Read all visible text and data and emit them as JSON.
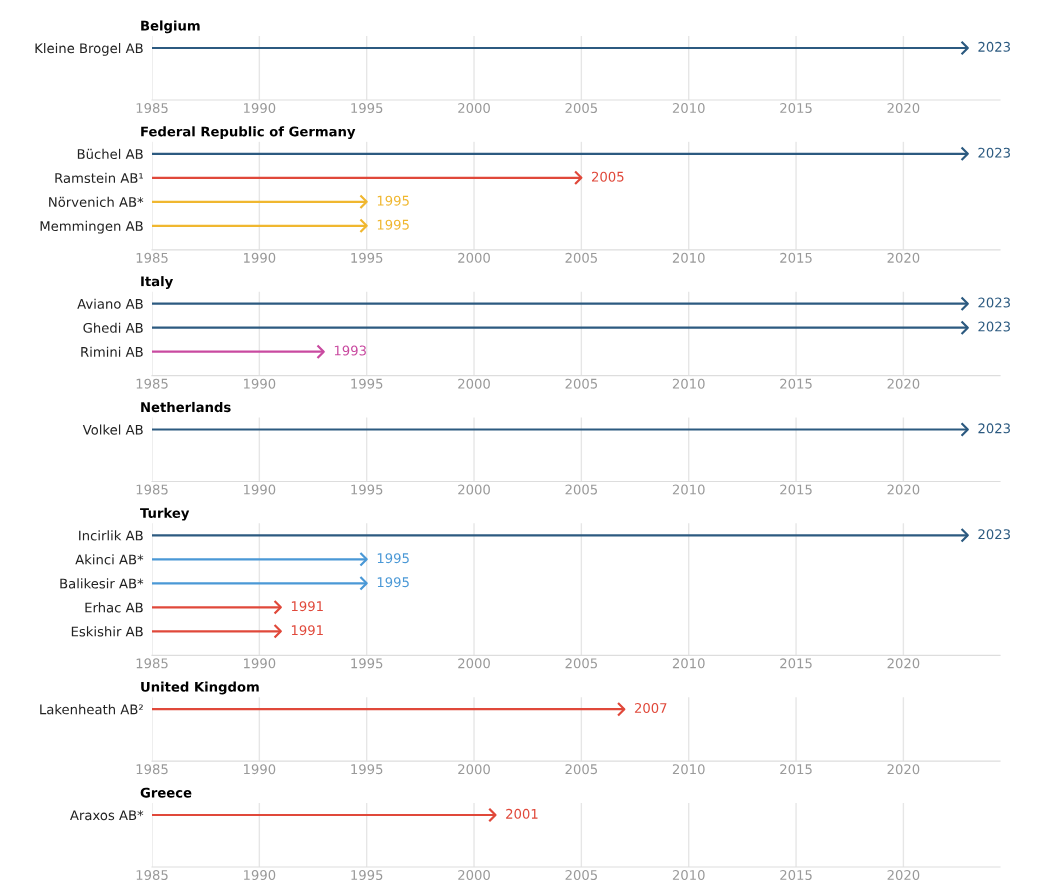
{
  "chart_data": [
    {
      "type": "bar",
      "orientation": "horizontal",
      "title": "Belgium",
      "categories": [
        "Kleine Brogel AB"
      ],
      "values": [
        2023
      ],
      "colors": [
        "#2c5a80"
      ],
      "value_labels": [
        "2023"
      ],
      "xlim": [
        1985,
        2024.5
      ],
      "xticks": [
        1985,
        1990,
        1995,
        2000,
        2005,
        2010,
        2015,
        2020
      ],
      "grid": "x"
    },
    {
      "type": "bar",
      "orientation": "horizontal",
      "title": "Federal Republic of Germany",
      "categories": [
        "Büchel AB",
        "Ramstein AB¹",
        "Nörvenich AB*",
        "Memmingen AB"
      ],
      "values": [
        2023,
        2005,
        1995,
        1995
      ],
      "colors": [
        "#2c5a80",
        "#e0483a",
        "#f0b72f",
        "#f0b72f"
      ],
      "value_labels": [
        "2023",
        "2005",
        "1995",
        "1995"
      ],
      "xlim": [
        1985,
        2024.5
      ],
      "xticks": [
        1985,
        1990,
        1995,
        2000,
        2005,
        2010,
        2015,
        2020
      ],
      "grid": "x"
    },
    {
      "type": "bar",
      "orientation": "horizontal",
      "title": "Italy",
      "categories": [
        "Aviano AB",
        "Ghedi AB",
        "Rimini AB"
      ],
      "values": [
        2023,
        2023,
        1993
      ],
      "colors": [
        "#2c5a80",
        "#2c5a80",
        "#c94aa0"
      ],
      "value_labels": [
        "2023",
        "2023",
        "1993"
      ],
      "xlim": [
        1985,
        2024.5
      ],
      "xticks": [
        1985,
        1990,
        1995,
        2000,
        2005,
        2010,
        2015,
        2020
      ],
      "grid": "x"
    },
    {
      "type": "bar",
      "orientation": "horizontal",
      "title": "Netherlands",
      "categories": [
        "Volkel AB"
      ],
      "values": [
        2023
      ],
      "colors": [
        "#2c5a80"
      ],
      "value_labels": [
        "2023"
      ],
      "xlim": [
        1985,
        2024.5
      ],
      "xticks": [
        1985,
        1990,
        1995,
        2000,
        2005,
        2010,
        2015,
        2020
      ],
      "grid": "x"
    },
    {
      "type": "bar",
      "orientation": "horizontal",
      "title": "Turkey",
      "categories": [
        "Incirlik AB",
        "Akinci AB*",
        "Balikesir AB*",
        "Erhac AB",
        "Eskishir AB"
      ],
      "values": [
        2023,
        1995,
        1995,
        1991,
        1991
      ],
      "colors": [
        "#2c5a80",
        "#4a98d6",
        "#4a98d6",
        "#e0483a",
        "#e0483a"
      ],
      "value_labels": [
        "2023",
        "1995",
        "1995",
        "1991",
        "1991"
      ],
      "xlim": [
        1985,
        2024.5
      ],
      "xticks": [
        1985,
        1990,
        1995,
        2000,
        2005,
        2010,
        2015,
        2020
      ],
      "grid": "x"
    },
    {
      "type": "bar",
      "orientation": "horizontal",
      "title": "United Kingdom",
      "categories": [
        "Lakenheath AB²"
      ],
      "values": [
        2007
      ],
      "colors": [
        "#e0483a"
      ],
      "value_labels": [
        "2007"
      ],
      "xlim": [
        1985,
        2024.5
      ],
      "xticks": [
        1985,
        1990,
        1995,
        2000,
        2005,
        2010,
        2015,
        2020
      ],
      "grid": "x"
    },
    {
      "type": "bar",
      "orientation": "horizontal",
      "title": "Greece",
      "categories": [
        "Araxos AB*"
      ],
      "values": [
        2001
      ],
      "colors": [
        "#e0483a"
      ],
      "value_labels": [
        "2001"
      ],
      "xlim": [
        1985,
        2024.5
      ],
      "xticks": [
        1985,
        1990,
        1995,
        2000,
        2005,
        2010,
        2015,
        2020
      ],
      "grid": "x"
    }
  ]
}
